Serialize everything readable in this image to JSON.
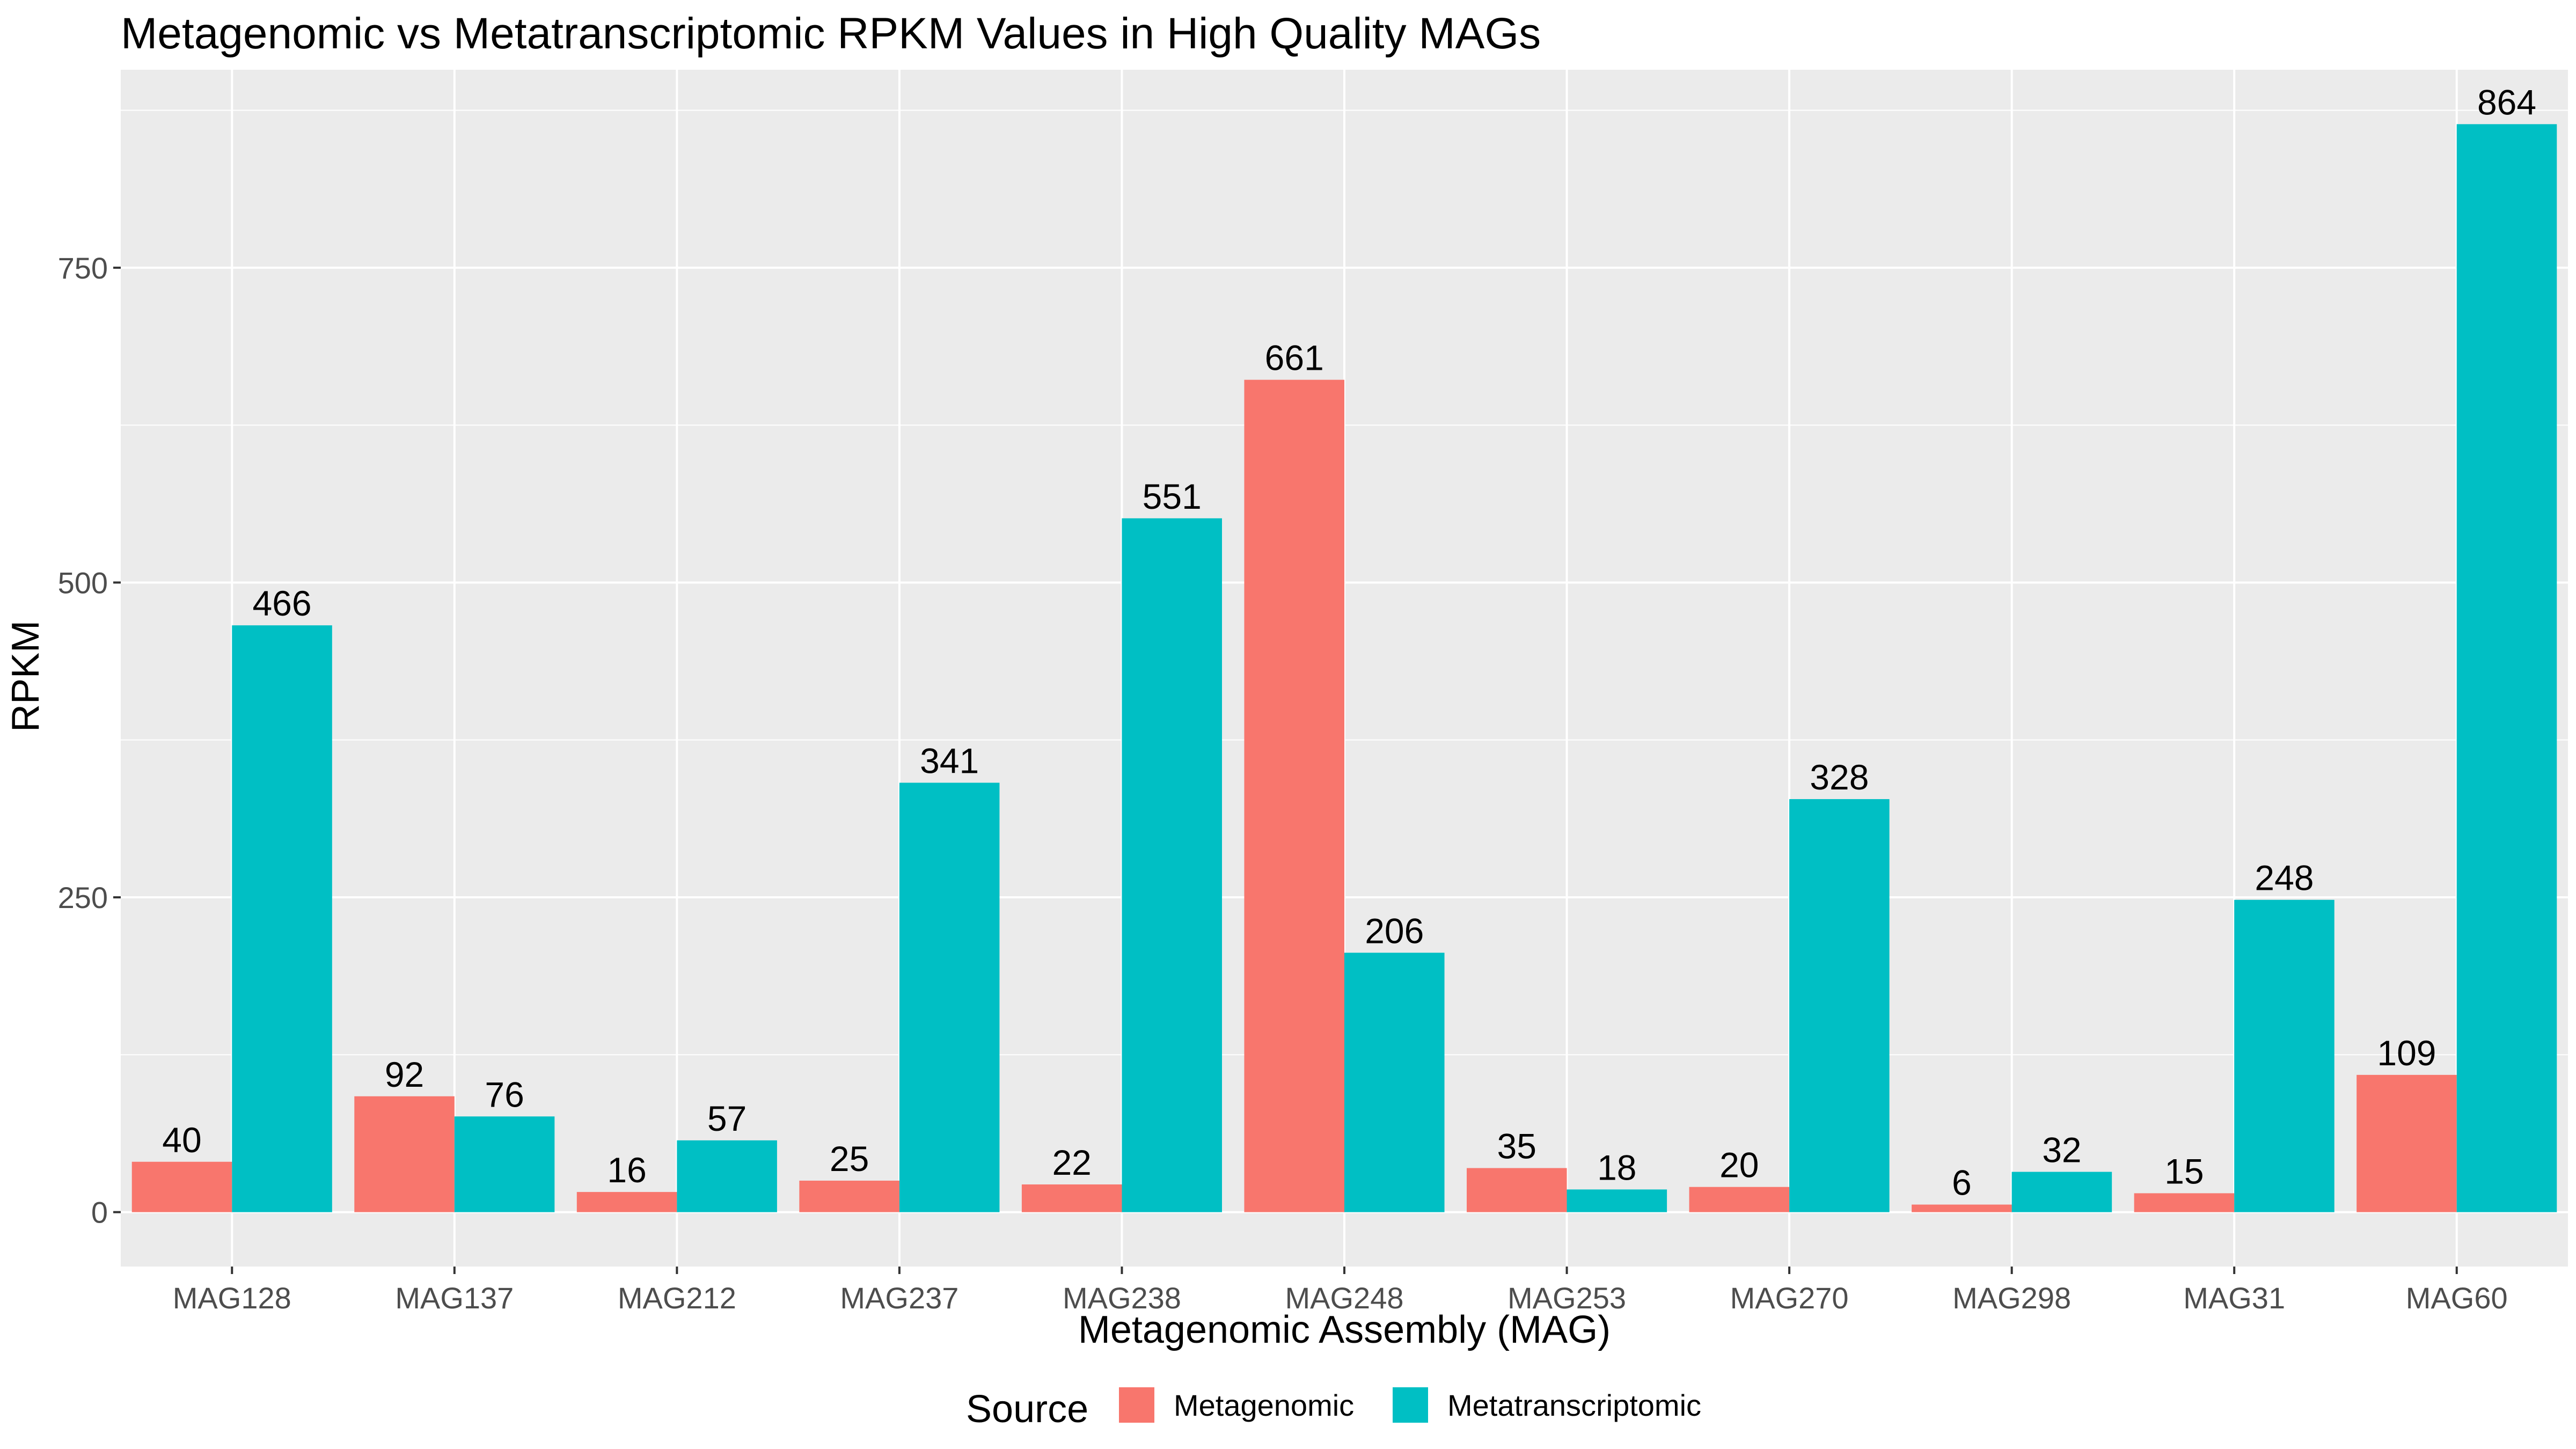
{
  "chart_data": {
    "type": "bar",
    "title": "Metagenomic vs Metatranscriptomic RPKM Values in High Quality MAGs",
    "xlabel": "Metagenomic Assembly (MAG)",
    "ylabel": "RPKM",
    "categories": [
      "MAG128",
      "MAG137",
      "MAG212",
      "MAG237",
      "MAG238",
      "MAG248",
      "MAG253",
      "MAG270",
      "MAG298",
      "MAG31",
      "MAG60"
    ],
    "series": [
      {
        "name": "Metagenomic",
        "color": "#F8766D",
        "values": [
          40,
          92,
          16,
          25,
          22,
          661,
          35,
          20,
          6,
          15,
          109
        ]
      },
      {
        "name": "Metatranscriptomic",
        "color": "#00BFC4",
        "values": [
          466,
          76,
          57,
          341,
          551,
          206,
          18,
          328,
          32,
          248,
          864
        ]
      }
    ],
    "ylim": [
      -43.2,
      907.2
    ],
    "yticks": [
      0,
      250,
      500,
      750
    ],
    "grid": true,
    "panel_background": "#EBEBEB",
    "legend": {
      "title": "Source",
      "position": "bottom"
    }
  }
}
